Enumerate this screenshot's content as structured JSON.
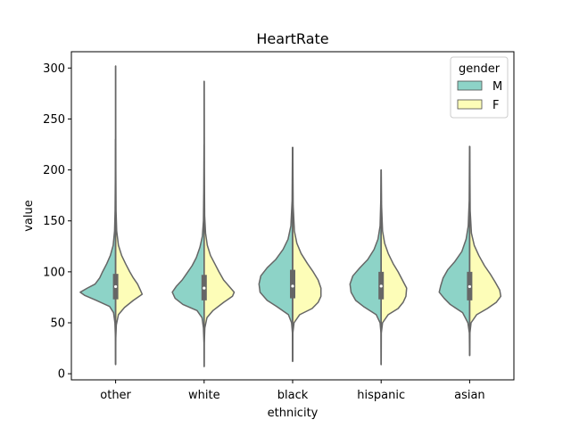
{
  "chart_data": {
    "type": "violin",
    "title": "HeartRate",
    "xlabel": "ethnicity",
    "ylabel": "value",
    "categories": [
      "other",
      "white",
      "black",
      "hispanic",
      "asian"
    ],
    "yticks": [
      0,
      50,
      100,
      150,
      200,
      250,
      300
    ],
    "ylim": [
      -6,
      316
    ],
    "split": true,
    "legend": {
      "title": "gender",
      "placement": "top-right",
      "entries": [
        {
          "label": "M",
          "color": "#8dd3c7"
        },
        {
          "label": "F",
          "color": "#fdfdb8"
        }
      ]
    },
    "series": [
      {
        "name": "M",
        "color": "#8dd3c7",
        "groups": [
          {
            "min": 9,
            "max": 230,
            "q1": 73,
            "median": 85,
            "q3": 98,
            "density": [
              [
                9,
                0.002
              ],
              [
                35,
                0.004
              ],
              [
                50,
                0.02
              ],
              [
                60,
                0.06
              ],
              [
                66,
                0.17
              ],
              [
                72,
                0.55
              ],
              [
                77,
                0.88
              ],
              [
                80,
                1.0
              ],
              [
                84,
                0.8
              ],
              [
                88,
                0.58
              ],
              [
                94,
                0.45
              ],
              [
                100,
                0.37
              ],
              [
                108,
                0.25
              ],
              [
                116,
                0.15
              ],
              [
                126,
                0.07
              ],
              [
                140,
                0.03
              ],
              [
                160,
                0.015
              ],
              [
                200,
                0.006
              ],
              [
                230,
                0.003
              ]
            ]
          },
          {
            "min": 8,
            "max": 225,
            "q1": 72,
            "median": 84,
            "q3": 97,
            "density": [
              [
                8,
                0.002
              ],
              [
                30,
                0.004
              ],
              [
                45,
                0.02
              ],
              [
                55,
                0.06
              ],
              [
                62,
                0.2
              ],
              [
                68,
                0.6
              ],
              [
                74,
                0.82
              ],
              [
                80,
                0.9
              ],
              [
                86,
                0.78
              ],
              [
                92,
                0.62
              ],
              [
                98,
                0.5
              ],
              [
                106,
                0.34
              ],
              [
                114,
                0.22
              ],
              [
                124,
                0.12
              ],
              [
                135,
                0.05
              ],
              [
                150,
                0.02
              ],
              [
                180,
                0.01
              ],
              [
                225,
                0.003
              ]
            ]
          },
          {
            "min": 12,
            "max": 222,
            "q1": 74,
            "median": 86,
            "q3": 100,
            "density": [
              [
                12,
                0.002
              ],
              [
                40,
                0.006
              ],
              [
                50,
                0.03
              ],
              [
                58,
                0.12
              ],
              [
                66,
                0.45
              ],
              [
                72,
                0.72
              ],
              [
                80,
                0.92
              ],
              [
                88,
                0.95
              ],
              [
                96,
                0.9
              ],
              [
                104,
                0.72
              ],
              [
                112,
                0.48
              ],
              [
                122,
                0.27
              ],
              [
                132,
                0.13
              ],
              [
                145,
                0.05
              ],
              [
                170,
                0.015
              ],
              [
                222,
                0.004
              ]
            ]
          },
          {
            "min": 9,
            "max": 200,
            "q1": 73,
            "median": 86,
            "q3": 99,
            "density": [
              [
                9,
                0.002
              ],
              [
                40,
                0.005
              ],
              [
                50,
                0.03
              ],
              [
                58,
                0.14
              ],
              [
                66,
                0.5
              ],
              [
                72,
                0.72
              ],
              [
                80,
                0.85
              ],
              [
                88,
                0.88
              ],
              [
                96,
                0.8
              ],
              [
                104,
                0.6
              ],
              [
                112,
                0.38
              ],
              [
                122,
                0.2
              ],
              [
                132,
                0.09
              ],
              [
                145,
                0.03
              ],
              [
                170,
                0.01
              ],
              [
                200,
                0.003
              ]
            ]
          },
          {
            "min": 18,
            "max": 223,
            "q1": 72,
            "median": 85,
            "q3": 100,
            "density": [
              [
                18,
                0.002
              ],
              [
                40,
                0.008
              ],
              [
                50,
                0.05
              ],
              [
                60,
                0.2
              ],
              [
                68,
                0.55
              ],
              [
                74,
                0.72
              ],
              [
                80,
                0.86
              ],
              [
                86,
                0.82
              ],
              [
                94,
                0.75
              ],
              [
                102,
                0.62
              ],
              [
                110,
                0.42
              ],
              [
                120,
                0.22
              ],
              [
                132,
                0.1
              ],
              [
                145,
                0.04
              ],
              [
                170,
                0.012
              ],
              [
                223,
                0.003
              ]
            ]
          }
        ]
      },
      {
        "name": "F",
        "color": "#fdfdb8",
        "groups": [
          {
            "min": 10,
            "max": 302,
            "q1": 73,
            "median": 86,
            "q3": 98,
            "density": [
              [
                10,
                0.002
              ],
              [
                35,
                0.005
              ],
              [
                48,
                0.02
              ],
              [
                58,
                0.08
              ],
              [
                65,
                0.25
              ],
              [
                72,
                0.5
              ],
              [
                78,
                0.75
              ],
              [
                82,
                0.7
              ],
              [
                88,
                0.62
              ],
              [
                94,
                0.5
              ],
              [
                100,
                0.4
              ],
              [
                108,
                0.28
              ],
              [
                116,
                0.17
              ],
              [
                126,
                0.08
              ],
              [
                140,
                0.03
              ],
              [
                160,
                0.012
              ],
              [
                200,
                0.006
              ],
              [
                260,
                0.003
              ],
              [
                302,
                0.001
              ]
            ]
          },
          {
            "min": 7,
            "max": 287,
            "q1": 72,
            "median": 84,
            "q3": 96,
            "density": [
              [
                7,
                0.002
              ],
              [
                30,
                0.004
              ],
              [
                45,
                0.02
              ],
              [
                55,
                0.08
              ],
              [
                62,
                0.25
              ],
              [
                70,
                0.55
              ],
              [
                76,
                0.8
              ],
              [
                80,
                0.85
              ],
              [
                86,
                0.7
              ],
              [
                92,
                0.55
              ],
              [
                100,
                0.42
              ],
              [
                108,
                0.3
              ],
              [
                116,
                0.18
              ],
              [
                126,
                0.09
              ],
              [
                138,
                0.04
              ],
              [
                155,
                0.015
              ],
              [
                200,
                0.006
              ],
              [
                287,
                0.002
              ]
            ]
          },
          {
            "min": 13,
            "max": 222,
            "q1": 74,
            "median": 86,
            "q3": 102,
            "density": [
              [
                13,
                0.002
              ],
              [
                40,
                0.006
              ],
              [
                50,
                0.04
              ],
              [
                58,
                0.2
              ],
              [
                64,
                0.55
              ],
              [
                70,
                0.72
              ],
              [
                76,
                0.8
              ],
              [
                84,
                0.8
              ],
              [
                92,
                0.72
              ],
              [
                100,
                0.58
              ],
              [
                108,
                0.42
              ],
              [
                118,
                0.24
              ],
              [
                128,
                0.12
              ],
              [
                140,
                0.05
              ],
              [
                165,
                0.015
              ],
              [
                222,
                0.004
              ]
            ]
          },
          {
            "min": 9,
            "max": 200,
            "q1": 73,
            "median": 86,
            "q3": 100,
            "density": [
              [
                9,
                0.002
              ],
              [
                40,
                0.005
              ],
              [
                50,
                0.04
              ],
              [
                58,
                0.2
              ],
              [
                64,
                0.48
              ],
              [
                70,
                0.62
              ],
              [
                76,
                0.7
              ],
              [
                84,
                0.72
              ],
              [
                92,
                0.6
              ],
              [
                100,
                0.48
              ],
              [
                108,
                0.34
              ],
              [
                118,
                0.2
              ],
              [
                128,
                0.1
              ],
              [
                140,
                0.04
              ],
              [
                165,
                0.012
              ],
              [
                200,
                0.003
              ]
            ]
          },
          {
            "min": 18,
            "max": 223,
            "q1": 72,
            "median": 86,
            "q3": 100,
            "density": [
              [
                18,
                0.002
              ],
              [
                40,
                0.008
              ],
              [
                50,
                0.04
              ],
              [
                58,
                0.2
              ],
              [
                64,
                0.5
              ],
              [
                70,
                0.75
              ],
              [
                76,
                0.88
              ],
              [
                82,
                0.85
              ],
              [
                90,
                0.72
              ],
              [
                98,
                0.58
              ],
              [
                106,
                0.42
              ],
              [
                116,
                0.26
              ],
              [
                126,
                0.13
              ],
              [
                138,
                0.05
              ],
              [
                160,
                0.015
              ],
              [
                223,
                0.003
              ]
            ]
          }
        ]
      }
    ]
  }
}
